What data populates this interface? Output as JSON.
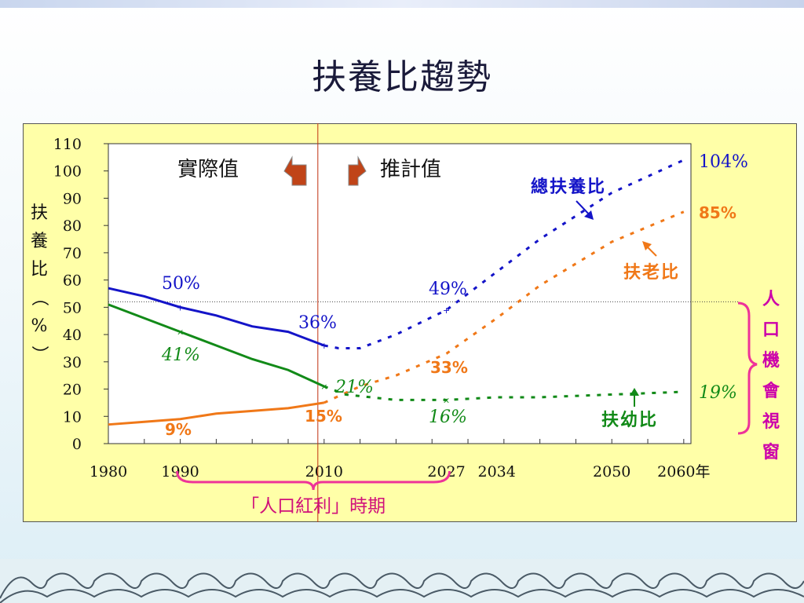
{
  "title": "扶養比趨勢",
  "chart_data": {
    "type": "line",
    "ylabel": "扶養比（%）",
    "ylim": [
      0,
      110
    ],
    "y_ticks": [
      "0",
      "10",
      "20",
      "30",
      "40",
      "50",
      "60",
      "70",
      "80",
      "90",
      "100",
      "110"
    ],
    "x_ticks": [
      "1980",
      "1990",
      "2010",
      "2027",
      "2034",
      "2050",
      "2060年"
    ],
    "x_tick_values": [
      1980,
      1990,
      2010,
      2027,
      2034,
      2050,
      2060
    ],
    "actual_label": "實際值",
    "projected_label": "推計值",
    "split_year": 2010,
    "series": [
      {
        "name": "總扶養比",
        "color": "#1414c8",
        "actual": [
          [
            1980,
            57
          ],
          [
            1985,
            54
          ],
          [
            1990,
            50
          ],
          [
            1995,
            47
          ],
          [
            2000,
            43
          ],
          [
            2005,
            41
          ],
          [
            2010,
            36
          ]
        ],
        "projected": [
          [
            2010,
            36
          ],
          [
            2012,
            35
          ],
          [
            2015,
            35
          ],
          [
            2020,
            40
          ],
          [
            2027,
            49
          ],
          [
            2034,
            63
          ],
          [
            2040,
            75
          ],
          [
            2050,
            92
          ],
          [
            2060,
            104
          ]
        ]
      },
      {
        "name": "扶老比",
        "color": "#f07818",
        "actual": [
          [
            1980,
            7
          ],
          [
            1985,
            8
          ],
          [
            1990,
            9
          ],
          [
            1995,
            11
          ],
          [
            2000,
            12
          ],
          [
            2005,
            13
          ],
          [
            2010,
            15
          ]
        ],
        "projected": [
          [
            2010,
            15
          ],
          [
            2015,
            21
          ],
          [
            2020,
            25
          ],
          [
            2027,
            33
          ],
          [
            2034,
            46
          ],
          [
            2040,
            58
          ],
          [
            2050,
            74
          ],
          [
            2060,
            85
          ]
        ]
      },
      {
        "name": "扶幼比",
        "color": "#128a18",
        "actual": [
          [
            1980,
            51
          ],
          [
            1985,
            46
          ],
          [
            1990,
            41
          ],
          [
            1995,
            36
          ],
          [
            2000,
            31
          ],
          [
            2005,
            27
          ],
          [
            2010,
            21
          ]
        ],
        "projected": [
          [
            2010,
            21
          ],
          [
            2013,
            18
          ],
          [
            2020,
            16
          ],
          [
            2027,
            16
          ],
          [
            2034,
            17
          ],
          [
            2040,
            17
          ],
          [
            2050,
            18
          ],
          [
            2060,
            19
          ]
        ]
      }
    ],
    "annotations": {
      "total_1990": "50%",
      "child_1990": "41%",
      "old_1990": "9%",
      "total_2010": "36%",
      "child_2010": "21%",
      "old_2010": "15%",
      "total_2027": "49%",
      "old_2027": "33%",
      "child_2027": "16%",
      "total_2060": "104%",
      "old_2060": "85%",
      "child_2060": "19%",
      "total_label": "總扶養比",
      "old_label": "扶老比",
      "child_label": "扶幼比"
    },
    "brace_label": "「人口紅利」時期",
    "window_label": "人口機會視窗",
    "reference_line_value": 52,
    "colors": {
      "panel": "#ffffa8",
      "brace": "#ee3399",
      "window": "#cc00aa",
      "split": "#c03010"
    }
  }
}
